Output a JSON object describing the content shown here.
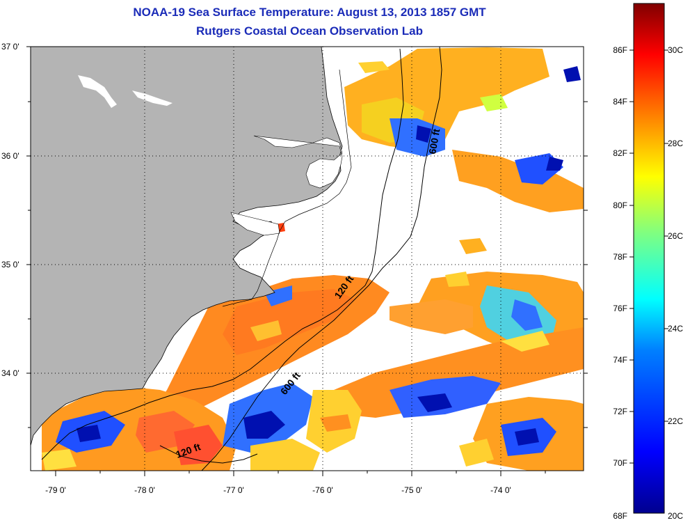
{
  "header": {
    "title_line1": "NOAA-19 Sea Surface Temperature:  August 13, 2013 1857 GMT",
    "title_line2": "Rutgers Coastal Ocean Observation Lab"
  },
  "map": {
    "lat_labels": [
      "37 0'",
      "36 0'",
      "35 0'",
      "34 0'"
    ],
    "lon_labels": [
      "-79 0'",
      "-78 0'",
      "-77 0'",
      "-76 0'",
      "-75 0'",
      "-74 0'"
    ],
    "contour_labels": [
      "600 ft",
      "120 ft",
      "600 ft",
      "120 ft"
    ],
    "colors": {
      "land": "#b4b4b4",
      "no_data": "#ffffff"
    }
  },
  "colorbar": {
    "fahrenheit_labels": [
      "86F",
      "84F",
      "82F",
      "80F",
      "78F",
      "76F",
      "74F",
      "72F",
      "70F",
      "68F"
    ],
    "celsius_labels": [
      "30C",
      "28C",
      "26C",
      "24C",
      "22C",
      "20C"
    ],
    "colors": [
      "#00008f",
      "#0000ff",
      "#0080ff",
      "#00ffff",
      "#80ff80",
      "#ffff00",
      "#ff8000",
      "#ff0000",
      "#800000"
    ]
  }
}
